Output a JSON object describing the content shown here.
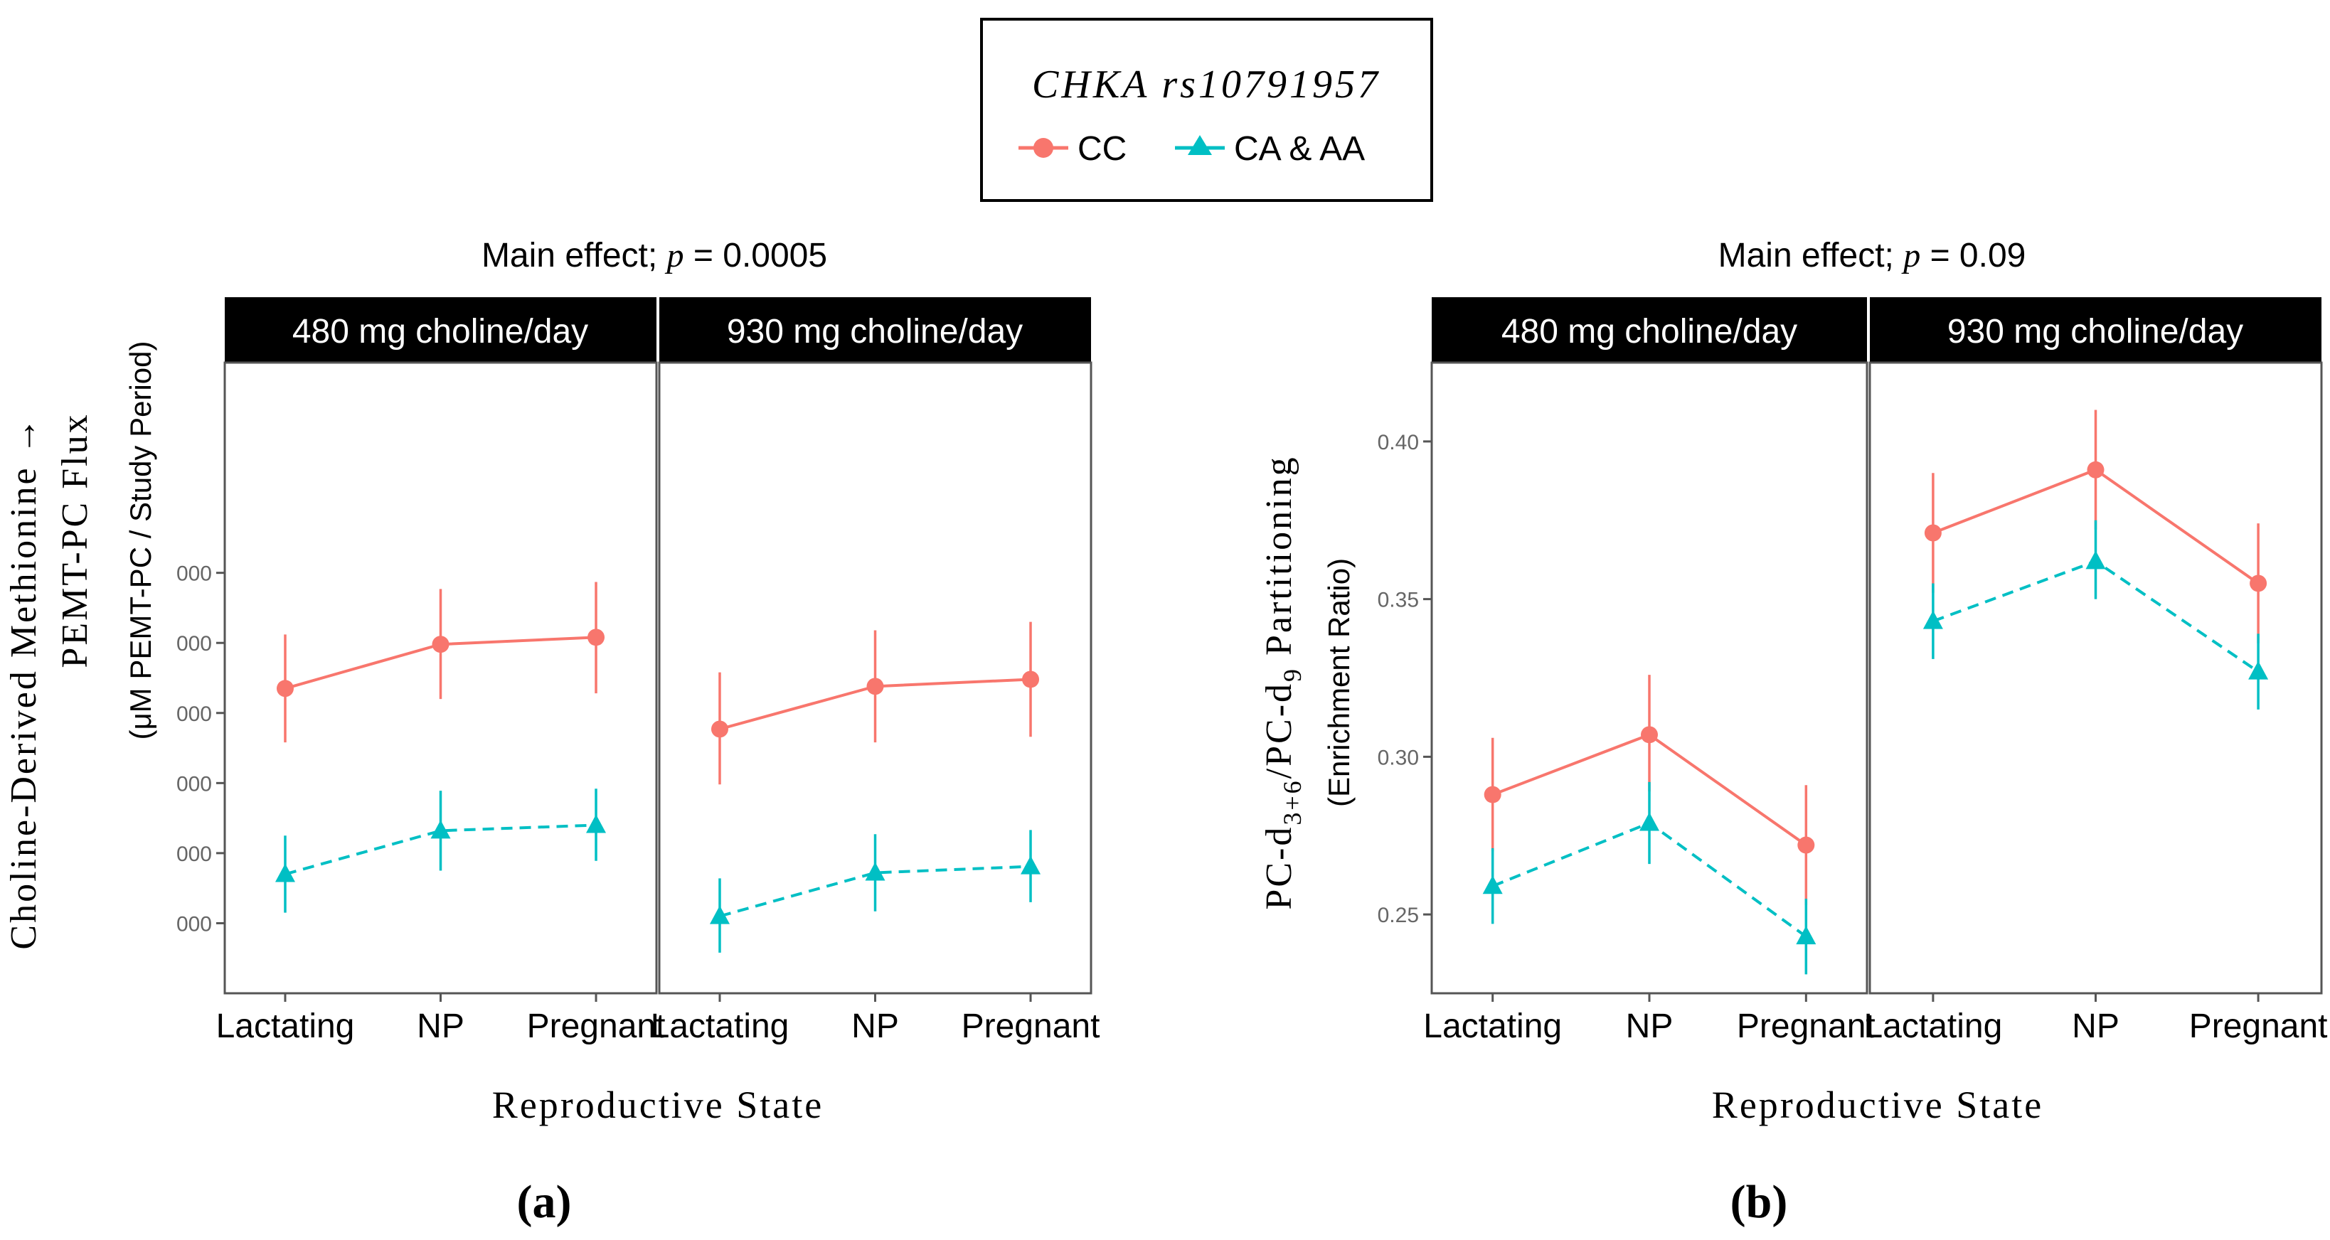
{
  "legend": {
    "title": "CHKA rs10791957",
    "items": [
      {
        "label": "CC",
        "color": "#F8766D",
        "marker": "circle"
      },
      {
        "label": "CA & AA",
        "color": "#00BFC4",
        "marker": "triangle"
      }
    ]
  },
  "chart_data": [
    {
      "type": "line",
      "panel_label": "(a)",
      "title_prefix": "Main effect;",
      "title_p": "p",
      "title_value": "= 0.0005",
      "ylabel_line1": "Choline-Derived Methionine →",
      "ylabel_line2": "PEMT-PC Flux",
      "ylabel_line3": "(μM PEMT-PC / Study Period)",
      "xlabel": "Reproductive State",
      "categories": [
        "Lactating",
        "NP",
        "Pregnant"
      ],
      "ylim": [
        0,
        9
      ],
      "yticks": [
        1,
        2,
        3,
        4,
        5,
        6
      ],
      "ytick_labels": [
        "000",
        "000",
        "000",
        "000",
        "000",
        "000"
      ],
      "facets": [
        {
          "label": "480 mg choline/day",
          "series": [
            {
              "name": "CC",
              "values": [
                4.35,
                4.98,
                5.08
              ],
              "lower": [
                3.58,
                4.2,
                4.28
              ],
              "upper": [
                5.12,
                5.77,
                5.87
              ]
            },
            {
              "name": "CA & AA",
              "values": [
                1.7,
                2.32,
                2.4
              ],
              "lower": [
                1.15,
                1.75,
                1.89
              ],
              "upper": [
                2.25,
                2.89,
                2.92
              ]
            }
          ]
        },
        {
          "label": "930 mg choline/day",
          "series": [
            {
              "name": "CC",
              "values": [
                3.77,
                4.38,
                4.48
              ],
              "lower": [
                2.98,
                3.58,
                3.66
              ],
              "upper": [
                4.58,
                5.18,
                5.3
              ]
            },
            {
              "name": "CA & AA",
              "values": [
                1.1,
                1.72,
                1.81
              ],
              "lower": [
                0.58,
                1.17,
                1.3
              ],
              "upper": [
                1.64,
                2.27,
                2.33
              ]
            }
          ]
        }
      ]
    },
    {
      "type": "line",
      "panel_label": "(b)",
      "title_prefix": "Main effect;",
      "title_p": "p",
      "title_value": "= 0.09",
      "ylabel_pc1": "PC-d",
      "ylabel_sub1": "3+6",
      "ylabel_pc2": "/PC-d",
      "ylabel_sub2": "9",
      "ylabel_tail": " Partitioning",
      "ylabel_line2": "(Enrichment Ratio)",
      "xlabel": "Reproductive State",
      "categories": [
        "Lactating",
        "NP",
        "Pregnant"
      ],
      "ylim": [
        0.225,
        0.425
      ],
      "yticks": [
        0.25,
        0.3,
        0.35,
        0.4
      ],
      "ytick_labels": [
        "0.25",
        "0.30",
        "0.35",
        "0.40"
      ],
      "facets": [
        {
          "label": "480 mg choline/day",
          "series": [
            {
              "name": "CC",
              "values": [
                0.288,
                0.307,
                0.272
              ],
              "lower": [
                0.27,
                0.289,
                0.253
              ],
              "upper": [
                0.306,
                0.326,
                0.291
              ]
            },
            {
              "name": "CA & AA",
              "values": [
                0.259,
                0.279,
                0.243
              ],
              "lower": [
                0.247,
                0.266,
                0.231
              ],
              "upper": [
                0.271,
                0.292,
                0.255
              ]
            }
          ]
        },
        {
          "label": "930 mg choline/day",
          "series": [
            {
              "name": "CC",
              "values": [
                0.371,
                0.391,
                0.355
              ],
              "lower": [
                0.352,
                0.372,
                0.336
              ],
              "upper": [
                0.39,
                0.41,
                0.374
              ]
            },
            {
              "name": "CA & AA",
              "values": [
                0.343,
                0.362,
                0.327
              ],
              "lower": [
                0.331,
                0.35,
                0.315
              ],
              "upper": [
                0.355,
                0.375,
                0.339
              ]
            }
          ]
        }
      ]
    }
  ]
}
